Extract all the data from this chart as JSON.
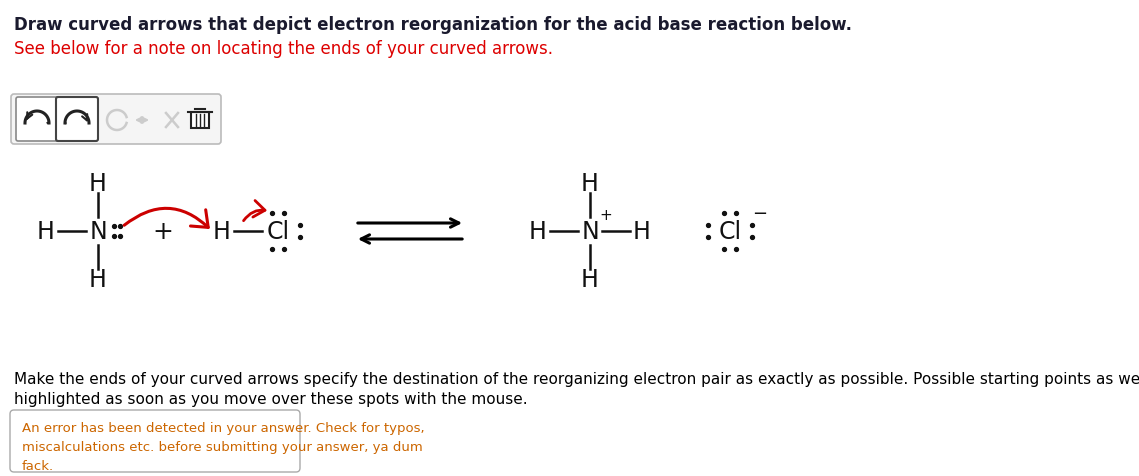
{
  "title_text": "Draw curved arrows that depict electron reorganization for the acid base reaction below.",
  "subtitle_text": "See below for a note on locating the ends of your curved arrows.",
  "bottom_text1": "Make the ends of your curved arrows specify the destination of the reorganizing electron pair as exactly as possible. Possible starting points as well as targets will be",
  "bottom_text2": "highlighted as soon as you move over these spots with the mouse.",
  "error_text": "An error has been detected in your answer. Check for typos,\nmiscalculations etc. before submitting your answer, ya dum\nfack.",
  "bg_color": "#ffffff",
  "title_color": "#1a1a2e",
  "subtitle_color": "#dd0000",
  "bottom_text_color": "#000000",
  "error_text_color": "#cc6600",
  "arrow_color": "#cc0000",
  "molecule_color": "#111111",
  "toolbar_bg": "#f5f5f5",
  "toolbar_border": "#bbbbbb",
  "icon_dark": "#222222",
  "icon_light": "#cccccc"
}
